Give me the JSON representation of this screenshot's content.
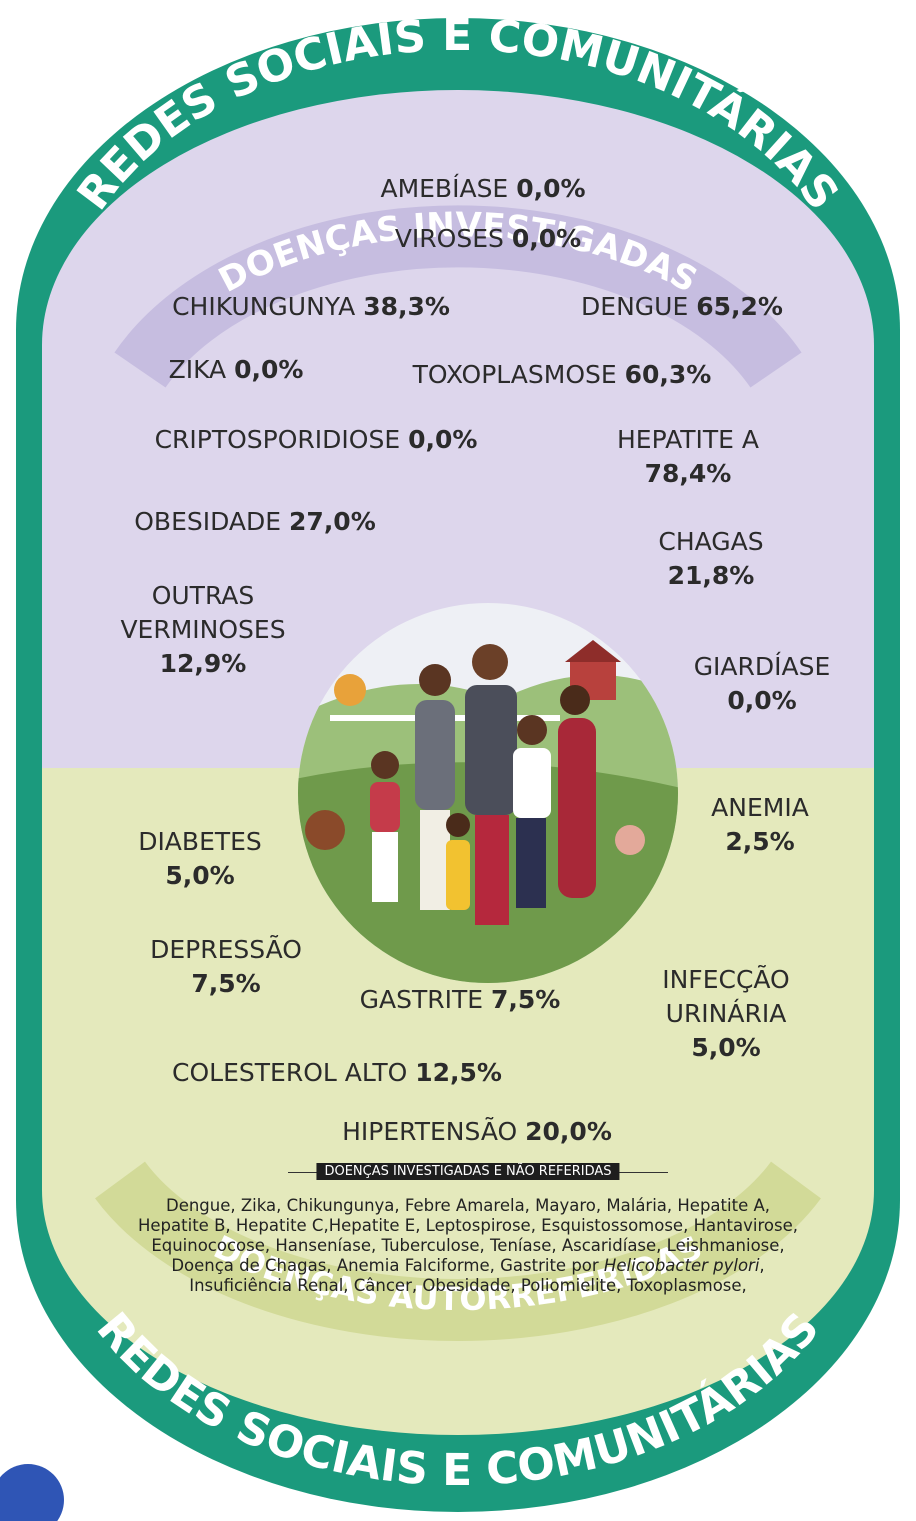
{
  "header": {
    "network": "REDES SOCIAIS E COMUNITÁRIAS",
    "section": "DOENÇAS INVESTIGADAS"
  },
  "investigated": [
    {
      "name": "AMEBÍASE",
      "label": "0,0%"
    },
    {
      "name": "VIROSES",
      "label": "0,0%"
    },
    {
      "name": "CHIKUNGUNYA",
      "label": "38,3%"
    },
    {
      "name": "DENGUE",
      "label": "65,2%"
    },
    {
      "name": "ZIKA",
      "label": "0,0%"
    },
    {
      "name": "TOXOPLASMOSE",
      "label": "60,3%"
    },
    {
      "name": "CRIPTOSPORIDIOSE",
      "label": "0,0%"
    },
    {
      "name": "HEPATITE A",
      "label": "78,4%"
    },
    {
      "name": "OBESIDADE",
      "label": "27,0%"
    },
    {
      "name": "CHAGAS",
      "label": "21,8%"
    },
    {
      "name": "OUTRAS VERMINOSES",
      "label": "12,9%"
    },
    {
      "name": "GIARDÍASE",
      "label": "0,0%"
    }
  ],
  "self_reported": [
    {
      "name": "ANEMIA",
      "label": "2,5%"
    },
    {
      "name": "DIABETES",
      "label": "5,0%"
    },
    {
      "name": "DEPRESSÃO",
      "label": "7,5%"
    },
    {
      "name": "GASTRITE",
      "label": "7,5%"
    },
    {
      "name": "INFECÇÃO URINÁRIA",
      "label": "5,0%"
    },
    {
      "name": "COLESTEROL ALTO",
      "label": "12,5%"
    },
    {
      "name": "HIPERTENSÃO",
      "label": "20,0%"
    }
  ],
  "note": {
    "title": "DOENÇAS INVESTIGADAS E NÃO REFERIDAS",
    "text_before": "Dengue, Zika, Chikungunya, Febre Amarela, Mayaro, Malária, Hepatite A, Hepatite B, Hepatite C,Hepatite E, Leptospirose, Esquistossomose, Hantavirose, Equinococose, Hanseníase, Tuberculose, Teníase, Ascaridíase, Leishmaniose, Doença de Chagas, Anemia Falciforme, Gastrite por ",
    "text_italic": "Helicobacter pylori",
    "text_after": ", Insuficiência Renal, Câncer, Obesidade, Poliomielite, Toxoplasmose,"
  },
  "footer": {
    "section": "DOENÇAS AUTORREFERIDAS",
    "network": "REDES SOCIAIS E COMUNITÁRIAS"
  }
}
